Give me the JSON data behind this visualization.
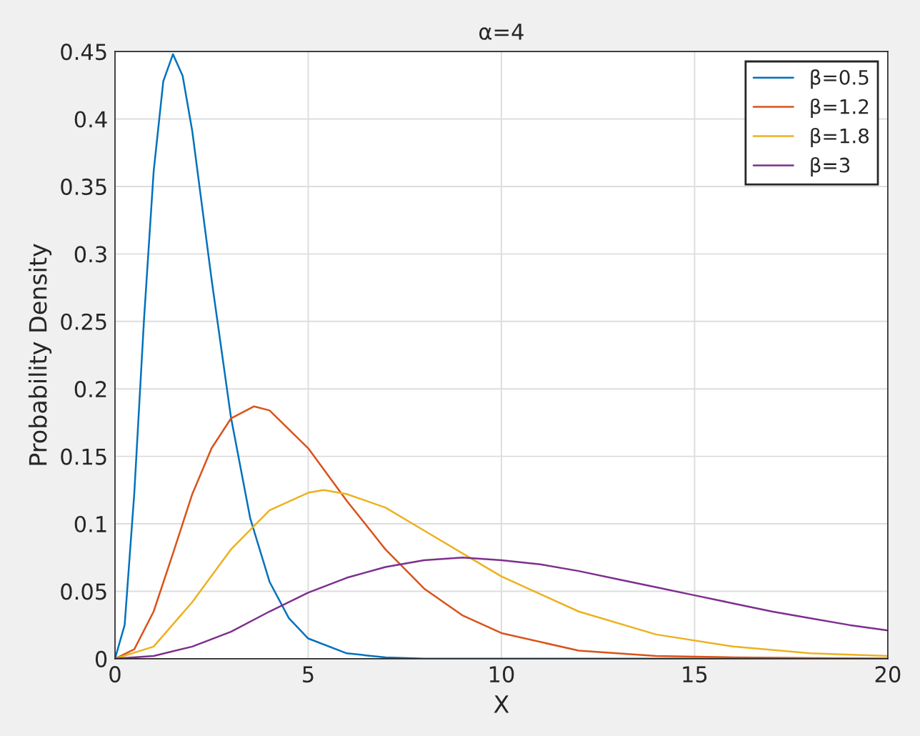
{
  "chart_data": {
    "type": "line",
    "title": "α=4",
    "xlabel": "X",
    "ylabel": "Probability Density",
    "xlim": [
      0,
      20
    ],
    "ylim": [
      0,
      0.45
    ],
    "xticks": [
      0,
      5,
      10,
      15,
      20
    ],
    "yticks": [
      0,
      0.05,
      0.1,
      0.15,
      0.2,
      0.25,
      0.3,
      0.35,
      0.4,
      0.45
    ],
    "grid": true,
    "legend": "top right",
    "marker": "none",
    "line_style": "solid",
    "series": [
      {
        "name": "β=0.5",
        "color": "#0072bd",
        "x": [
          0,
          0.25,
          0.5,
          0.75,
          1,
          1.25,
          1.5,
          1.75,
          2,
          2.5,
          3,
          3.5,
          4,
          4.5,
          5,
          6,
          7,
          8,
          10,
          20
        ],
        "values": [
          0,
          0.025,
          0.123,
          0.251,
          0.361,
          0.428,
          0.448,
          0.432,
          0.391,
          0.281,
          0.179,
          0.104,
          0.057,
          0.03,
          0.015,
          0.004,
          0.001,
          0,
          0,
          0
        ]
      },
      {
        "name": "β=1.2",
        "color": "#d95319",
        "x": [
          0,
          0.5,
          1,
          1.5,
          2,
          2.5,
          3,
          3.6,
          4,
          5,
          6,
          7,
          8,
          9,
          10,
          12,
          14,
          16,
          20
        ],
        "values": [
          0,
          0.007,
          0.035,
          0.078,
          0.122,
          0.156,
          0.178,
          0.187,
          0.184,
          0.156,
          0.117,
          0.081,
          0.052,
          0.032,
          0.019,
          0.006,
          0.002,
          0.001,
          0
        ]
      },
      {
        "name": "β=1.8",
        "color": "#edb120",
        "x": [
          0,
          1,
          2,
          3,
          4,
          5,
          5.4,
          6,
          7,
          8,
          9,
          10,
          12,
          14,
          16,
          18,
          20
        ],
        "values": [
          0,
          0.009,
          0.042,
          0.081,
          0.11,
          0.123,
          0.125,
          0.122,
          0.112,
          0.095,
          0.078,
          0.061,
          0.035,
          0.018,
          0.009,
          0.004,
          0.002
        ]
      },
      {
        "name": "β=3",
        "color": "#7e2f8e",
        "x": [
          0,
          1,
          2,
          3,
          4,
          5,
          6,
          7,
          8,
          9,
          10,
          11,
          12,
          13,
          14,
          15,
          16,
          17,
          18,
          19,
          20
        ],
        "values": [
          0,
          0.002,
          0.009,
          0.02,
          0.035,
          0.049,
          0.06,
          0.068,
          0.073,
          0.075,
          0.073,
          0.07,
          0.065,
          0.059,
          0.053,
          0.047,
          0.041,
          0.035,
          0.03,
          0.025,
          0.021
        ]
      }
    ]
  }
}
